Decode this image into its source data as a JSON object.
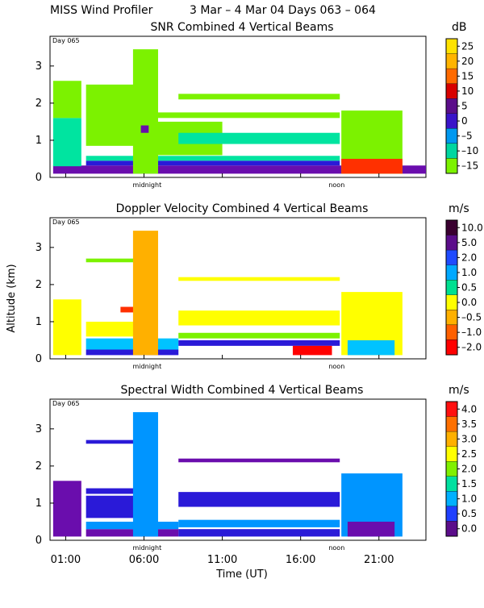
{
  "header": {
    "title_left": "MISS Wind Profiler",
    "title_right": "3 Mar –  4 Mar 04 Days 063 – 064"
  },
  "axes": {
    "ylabel": "Altitude (km)",
    "xlabel": "Time (UT)",
    "x_ticks": [
      "01:00",
      "06:00",
      "11:00",
      "16:00",
      "21:00"
    ],
    "y_ticks": [
      "0",
      "1",
      "2",
      "3"
    ],
    "midnight_label": "midnight",
    "noon_label": "noon",
    "day_label": "Day 065"
  },
  "colors": {
    "c0": "#6a0dad",
    "c1": "#2a1ad8",
    "c2": "#0095ff",
    "c3": "#00c3ff",
    "c4": "#00e4a0",
    "c5": "#7cf200",
    "c6": "#ffff00",
    "c7": "#ffb000",
    "c8": "#ff3000",
    "c9": "#ff0000",
    "c10": "#3a0030"
  },
  "chart_data": [
    {
      "type": "heatmap",
      "title": "SNR Combined 4 Vertical Beams",
      "unit": "dB",
      "colorbar_ticks": [
        "25",
        "20",
        "15",
        "10",
        "5",
        "0",
        "–5",
        "–10",
        "–15"
      ],
      "colorbar_colors": [
        "#ffe200",
        "#ffb400",
        "#ff6a00",
        "#d70000",
        "#5b0d8a",
        "#3a14c9",
        "#0098f0",
        "#00d6a0",
        "#7cf200"
      ],
      "ylim": [
        0,
        3.8
      ],
      "x_range_hours": [
        0,
        24
      ]
    },
    {
      "type": "heatmap",
      "title": "Doppler Velocity Combined 4 Vertical Beams",
      "unit": "m/s",
      "colorbar_ticks": [
        "10.0",
        "5.0",
        "2.0",
        "1.0",
        "0.5",
        "0.0",
        "–0.5",
        "–1.0",
        "–2.0"
      ],
      "colorbar_colors": [
        "#3a0030",
        "#5b0d8a",
        "#1f4bff",
        "#00a8ff",
        "#00e090",
        "#ffff00",
        "#ffb000",
        "#ff6000",
        "#ff0000"
      ],
      "ylim": [
        0,
        3.8
      ],
      "x_range_hours": [
        0,
        24
      ]
    },
    {
      "type": "heatmap",
      "title": "Spectral Width Combined 4 Vertical Beams",
      "unit": "m/s",
      "colorbar_ticks": [
        "4.0",
        "3.5",
        "3.0",
        "2.5",
        "2.0",
        "1.5",
        "1.0",
        "0.5",
        "0.0"
      ],
      "colorbar_colors": [
        "#ff1010",
        "#ff7000",
        "#ffb000",
        "#ffff00",
        "#80f000",
        "#00e0a0",
        "#00b0ff",
        "#1f40ff",
        "#5b0d8a"
      ],
      "ylim": [
        0,
        3.8
      ],
      "x_range_hours": [
        0,
        24
      ]
    }
  ]
}
